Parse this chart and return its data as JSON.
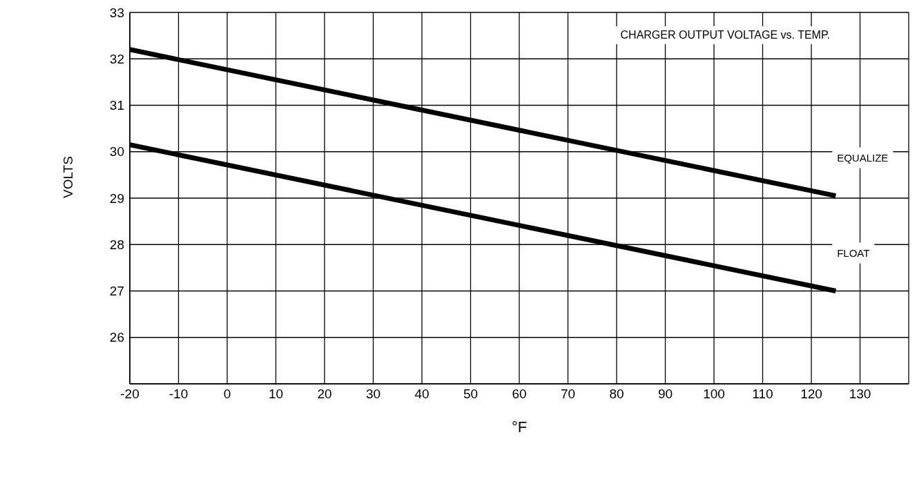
{
  "chart_data": {
    "type": "line",
    "title": "CHARGER OUTPUT VOLTAGE vs. TEMP.",
    "xlabel": "°F",
    "ylabel": "VOLTS",
    "x": [
      -20,
      125
    ],
    "series": [
      {
        "name": "EQUALIZE",
        "color": "#000000",
        "values": [
          32.2,
          29.05
        ]
      },
      {
        "name": "FLOAT",
        "color": "#000000",
        "values": [
          30.15,
          27.0
        ]
      }
    ],
    "xlim": [
      -20,
      140
    ],
    "xticks": [
      -20,
      -10,
      0,
      10,
      20,
      30,
      40,
      50,
      60,
      70,
      80,
      90,
      100,
      110,
      120,
      130
    ],
    "ylim": [
      25,
      33
    ],
    "yticks": [
      26,
      27,
      28,
      29,
      30,
      31,
      32,
      33
    ],
    "grid": true,
    "marker": "none",
    "line_style": "solid"
  }
}
